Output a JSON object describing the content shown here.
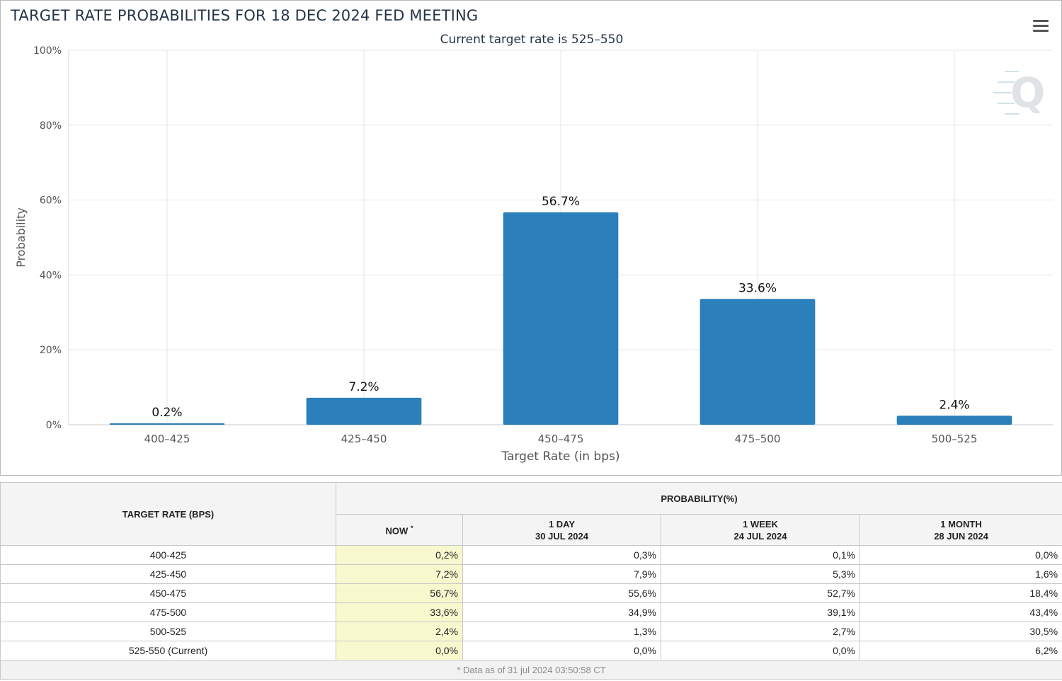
{
  "chart_data": {
    "type": "bar",
    "title": "TARGET RATE PROBABILITIES FOR 18 DEC 2024 FED MEETING",
    "subtitle": "Current target rate is 525–550",
    "xlabel": "Target Rate (in bps)",
    "ylabel": "Probability",
    "categories": [
      "400–425",
      "425–450",
      "450–475",
      "475–500",
      "500–525"
    ],
    "values": [
      0.2,
      7.2,
      56.7,
      33.6,
      2.4
    ],
    "data_labels": [
      "0.2%",
      "7.2%",
      "56.7%",
      "33.6%",
      "2.4%"
    ],
    "ylim": [
      0,
      100
    ],
    "y_ticks": [
      0,
      20,
      40,
      60,
      80,
      100
    ],
    "y_tick_labels": [
      "0%",
      "20%",
      "40%",
      "60%",
      "80%",
      "100%"
    ],
    "bar_color": "#2b7fbb",
    "grid": true,
    "legend": "none"
  },
  "chart_menu": {
    "icon": "hamburger-menu-icon"
  },
  "logo": {
    "icon": "q-logo-icon",
    "letter": "Q"
  },
  "table": {
    "rate_header": "TARGET RATE (BPS)",
    "prob_header": "PROBABILITY(%)",
    "columns": [
      {
        "line1": "NOW",
        "marker": "*",
        "line2": ""
      },
      {
        "line1": "1 DAY",
        "line2": "30 JUL 2024"
      },
      {
        "line1": "1 WEEK",
        "line2": "24 JUL 2024"
      },
      {
        "line1": "1 MONTH",
        "line2": "28 JUN 2024"
      }
    ],
    "rows": [
      {
        "rate": "400-425",
        "now": "0,2%",
        "day": "0,3%",
        "week": "0,1%",
        "month": "0,0%"
      },
      {
        "rate": "425-450",
        "now": "7,2%",
        "day": "7,9%",
        "week": "5,3%",
        "month": "1,6%"
      },
      {
        "rate": "450-475",
        "now": "56,7%",
        "day": "55,6%",
        "week": "52,7%",
        "month": "18,4%"
      },
      {
        "rate": "475-500",
        "now": "33,6%",
        "day": "34,9%",
        "week": "39,1%",
        "month": "43,4%"
      },
      {
        "rate": "500-525",
        "now": "2,4%",
        "day": "1,3%",
        "week": "2,7%",
        "month": "30,5%"
      },
      {
        "rate": "525-550 (Current)",
        "now": "0,0%",
        "day": "0,0%",
        "week": "0,0%",
        "month": "6,2%"
      }
    ],
    "footnote": "* Data as of 31 jul 2024 03:50:58 CT"
  }
}
